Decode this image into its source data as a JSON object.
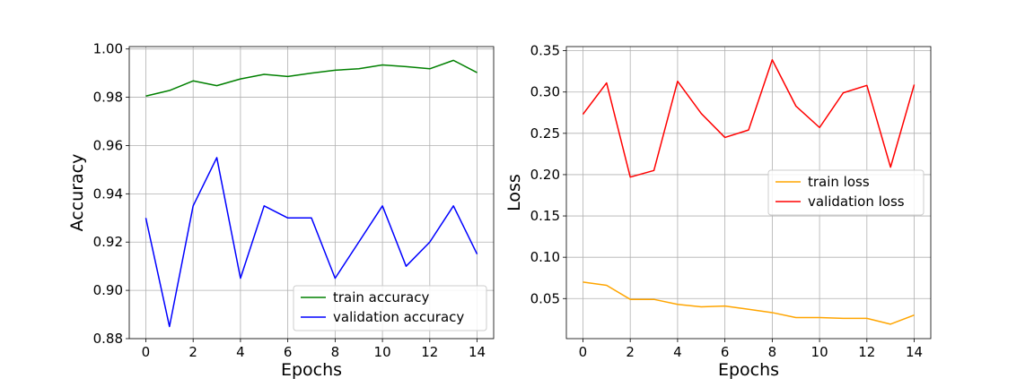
{
  "chart_data": [
    {
      "type": "line",
      "xlabel": "Epochs",
      "ylabel": "Accuracy",
      "x": [
        0,
        1,
        2,
        3,
        4,
        5,
        6,
        7,
        8,
        9,
        10,
        11,
        12,
        13,
        14
      ],
      "xlim": [
        -0.7,
        14.7
      ],
      "ylim": [
        0.88,
        1.001
      ],
      "xticks": [
        0,
        2,
        4,
        6,
        8,
        10,
        12,
        14
      ],
      "yticks": [
        0.88,
        0.9,
        0.92,
        0.94,
        0.96,
        0.98,
        1.0
      ],
      "ytick_labels": [
        "0.88",
        "0.90",
        "0.92",
        "0.94",
        "0.96",
        "0.98",
        "1.00"
      ],
      "grid": true,
      "legend_position": "lower-right",
      "series": [
        {
          "name": "train accuracy",
          "color": "#008000",
          "values": [
            0.9805,
            0.9828,
            0.9868,
            0.9848,
            0.9876,
            0.9895,
            0.9886,
            0.99,
            0.9912,
            0.9918,
            0.9934,
            0.9927,
            0.9918,
            0.9953,
            0.9902
          ]
        },
        {
          "name": "validation accuracy",
          "color": "#0000ff",
          "values": [
            0.93,
            0.885,
            0.935,
            0.955,
            0.905,
            0.935,
            0.93,
            0.93,
            0.905,
            0.92,
            0.935,
            0.91,
            0.92,
            0.935,
            0.915
          ]
        }
      ]
    },
    {
      "type": "line",
      "xlabel": "Epochs",
      "ylabel": "Loss",
      "x": [
        0,
        1,
        2,
        3,
        4,
        5,
        6,
        7,
        8,
        9,
        10,
        11,
        12,
        13,
        14
      ],
      "xlim": [
        -0.7,
        14.7
      ],
      "ylim": [
        0.0015,
        0.355
      ],
      "xticks": [
        0,
        2,
        4,
        6,
        8,
        10,
        12,
        14
      ],
      "yticks": [
        0.05,
        0.1,
        0.15,
        0.2,
        0.25,
        0.3,
        0.35
      ],
      "ytick_labels": [
        "0.05",
        "0.10",
        "0.15",
        "0.20",
        "0.25",
        "0.30",
        "0.35"
      ],
      "grid": true,
      "legend_position": "center-right",
      "series": [
        {
          "name": "train loss",
          "color": "#ffa500",
          "values": [
            0.07,
            0.066,
            0.049,
            0.049,
            0.043,
            0.04,
            0.041,
            0.037,
            0.033,
            0.027,
            0.027,
            0.026,
            0.026,
            0.019,
            0.03
          ]
        },
        {
          "name": "validation loss",
          "color": "#ff0000",
          "values": [
            0.273,
            0.311,
            0.197,
            0.205,
            0.313,
            0.274,
            0.245,
            0.254,
            0.339,
            0.283,
            0.257,
            0.299,
            0.308,
            0.209,
            0.309
          ]
        }
      ]
    }
  ]
}
